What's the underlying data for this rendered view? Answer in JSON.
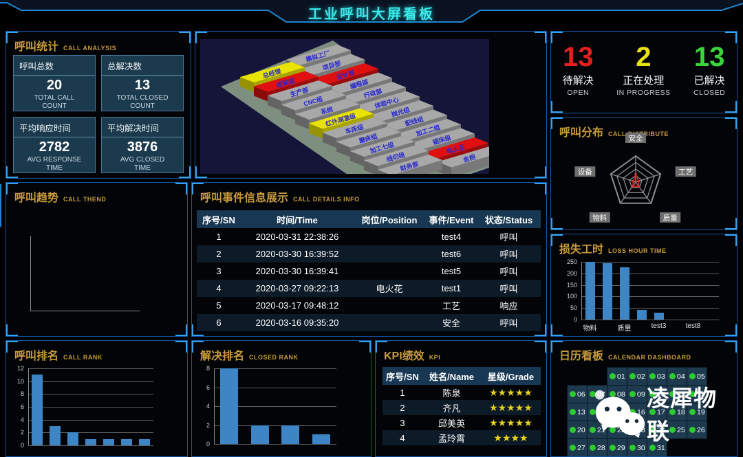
{
  "header": {
    "title": "工业呼叫大屏看板"
  },
  "colors": {
    "title_cyan": "#3ce8e8",
    "panel_border_blue": "#1157a8",
    "corner_bracket_blue": "#38a2e8",
    "panel_title_gold": "#c89b3c",
    "bar_blue": "#3d85c4",
    "open_red": "#e32020",
    "progress_yellow": "#e8e013",
    "closed_green": "#3bd53b",
    "calendar_dot_green": "#2ecb2e",
    "star_yellow": "#e7d41e",
    "radar_line_red": "#cc2222"
  },
  "call_analysis": {
    "title": "呼叫统计",
    "subtitle": "CALL ANALYSIS",
    "stats": [
      {
        "label": "呼叫总数",
        "value": "20",
        "desc": "TOTAL CALL COUNT"
      },
      {
        "label": "总解决数",
        "value": "13",
        "desc": "TOTAL CLOSED COUNT"
      },
      {
        "label": "平均响应时间",
        "value": "2782",
        "desc": "AVG RESPONSE TIME"
      },
      {
        "label": "平均解决时间",
        "value": "3876",
        "desc": "AVG CLOSED TIME"
      }
    ]
  },
  "factory_map": {
    "blocks": [
      {
        "label": "总经理",
        "color": "yellow",
        "col": 0,
        "row": 0
      },
      {
        "label": "组装组",
        "color": "red",
        "col": 0,
        "row": 1
      },
      {
        "label": "生产部",
        "color": "gray",
        "col": 0,
        "row": 2
      },
      {
        "label": "CNC组",
        "color": "gray",
        "col": 0,
        "row": 3
      },
      {
        "label": "系统",
        "color": "gray",
        "col": 0,
        "row": 4
      },
      {
        "label": "红外测温组",
        "color": "yellow",
        "col": 0,
        "row": 5
      },
      {
        "label": "车床组",
        "color": "gray",
        "col": 0,
        "row": 6
      },
      {
        "label": "磨床组",
        "color": "gray",
        "col": 0,
        "row": 7
      },
      {
        "label": "加工七组",
        "color": "gray",
        "col": 0,
        "row": 8
      },
      {
        "label": "线切组",
        "color": "gray",
        "col": 0,
        "row": 9
      },
      {
        "label": "财务部",
        "color": "gray",
        "col": 0,
        "row": 10
      },
      {
        "label": "模拟工厂",
        "color": "gray",
        "col": 1,
        "row": 0
      },
      {
        "label": "项目部",
        "color": "gray",
        "col": 1,
        "row": 1
      },
      {
        "label": "设计部",
        "color": "red",
        "col": 1,
        "row": 2
      },
      {
        "label": "编程部",
        "color": "gray",
        "col": 1,
        "row": 3
      },
      {
        "label": "行政部",
        "color": "gray",
        "col": 1,
        "row": 4
      },
      {
        "label": "体验中心",
        "color": "gray",
        "col": 1,
        "row": 5
      },
      {
        "label": "抛光组",
        "color": "gray",
        "col": 1,
        "row": 6
      },
      {
        "label": "配线组",
        "color": "gray",
        "col": 1,
        "row": 7
      },
      {
        "label": "加工二组",
        "color": "gray",
        "col": 1,
        "row": 8
      },
      {
        "label": "锯床组",
        "color": "gray",
        "col": 1,
        "row": 9
      },
      {
        "label": "电火花",
        "color": "red",
        "col": 1,
        "row": 10
      },
      {
        "label": "金相",
        "color": "gray",
        "col": 1,
        "row": 11
      }
    ]
  },
  "status_summary": {
    "items": [
      {
        "value": "13",
        "label": "待解决",
        "desc": "OPEN",
        "color": "#e32020"
      },
      {
        "value": "2",
        "label": "正在处理",
        "desc": "IN PROGRESS",
        "color": "#e8e013"
      },
      {
        "value": "13",
        "label": "已解决",
        "desc": "CLOSED",
        "color": "#3bd53b"
      }
    ]
  },
  "call_distribute": {
    "title": "呼叫分布",
    "subtitle": "CALL DISTRIBUTE",
    "chart": {
      "type": "radar",
      "axes": [
        "安全",
        "工艺",
        "质量",
        "物料",
        "设备"
      ],
      "values_norm": [
        0.3,
        0.12,
        0.22,
        0.18,
        0.1
      ]
    }
  },
  "call_trend": {
    "title": "呼叫趋势",
    "subtitle": "CALL THEND"
  },
  "call_details": {
    "title": "呼叫事件信息展示",
    "subtitle": "CALL DETAILS INFO",
    "columns": [
      "序号/SN",
      "时间/Time",
      "岗位/Position",
      "事件/Event",
      "状态/Status"
    ],
    "rows": [
      [
        "1",
        "2020-03-31 22:38:26",
        "",
        "test4",
        "呼叫"
      ],
      [
        "2",
        "2020-03-30 16:39:52",
        "",
        "test6",
        "呼叫"
      ],
      [
        "3",
        "2020-03-30 16:39:41",
        "",
        "test5",
        "呼叫"
      ],
      [
        "4",
        "2020-03-27 09:22:13",
        "电火花",
        "test1",
        "呼叫"
      ],
      [
        "5",
        "2020-03-17 09:48:12",
        "",
        "工艺",
        "响应"
      ],
      [
        "6",
        "2020-03-16 09:35:20",
        "",
        "安全",
        "呼叫"
      ]
    ]
  },
  "loss_hour": {
    "title": "损失工时",
    "subtitle": "LOSS HOUR TIME",
    "chart": {
      "type": "bar",
      "ymax": 250,
      "yticks": [
        0,
        50,
        100,
        150,
        200,
        250
      ],
      "values": [
        250,
        245,
        227,
        43,
        30,
        0,
        0,
        0
      ],
      "x_labels": [
        {
          "text": "物料",
          "index": 0
        },
        {
          "text": "质量",
          "index": 2
        },
        {
          "text": "test3",
          "index": 4
        },
        {
          "text": "test8",
          "index": 6
        }
      ]
    }
  },
  "call_rank": {
    "title": "呼叫排名",
    "subtitle": "CALL RANK",
    "chart": {
      "type": "bar",
      "ymax": 12,
      "yticks": [
        0,
        2,
        4,
        6,
        8,
        10,
        12
      ],
      "values": [
        11,
        3,
        2,
        1,
        1,
        1,
        1
      ],
      "x_labels": []
    }
  },
  "closed_rank": {
    "title": "解决排名",
    "subtitle": "CLOSED RANK",
    "chart": {
      "type": "bar",
      "ymax": 8,
      "yticks": [
        0,
        2,
        4,
        6,
        8
      ],
      "values": [
        8,
        2,
        2,
        1
      ],
      "x_labels": []
    }
  },
  "kpi": {
    "title": "KPI绩效",
    "subtitle": "KPI",
    "columns": [
      "序号/SN",
      "姓名/Name",
      "星级/Grade"
    ],
    "rows": [
      {
        "sn": "1",
        "name": "陈泉",
        "stars": 5
      },
      {
        "sn": "2",
        "name": "齐凡",
        "stars": 5
      },
      {
        "sn": "3",
        "name": "邱美英",
        "stars": 5
      },
      {
        "sn": "4",
        "name": "孟玲霄",
        "stars": 4
      }
    ]
  },
  "calendar": {
    "title": "日历看板",
    "subtitle": "CALENDAR DASHBOARD",
    "start_col": 2,
    "days": [
      "01",
      "02",
      "03",
      "04",
      "05",
      "06",
      "07",
      "08",
      "09",
      "10",
      "11",
      "12",
      "13",
      "14",
      "15",
      "16",
      "17",
      "18",
      "19",
      "20",
      "21",
      "22",
      "23",
      "24",
      "25",
      "26",
      "27",
      "28",
      "29",
      "30",
      "31"
    ]
  },
  "watermark": {
    "text": "凌犀物联"
  }
}
